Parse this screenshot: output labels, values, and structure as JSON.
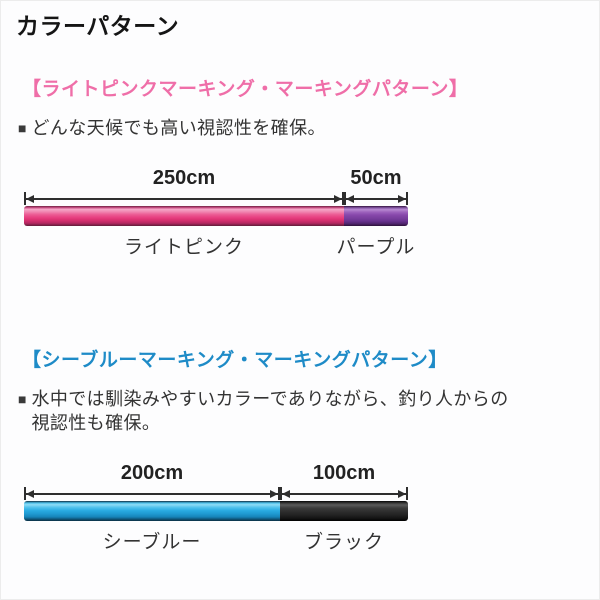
{
  "page": {
    "title": "カラーパターン",
    "bullet_marker": "■"
  },
  "colors": {
    "pink_heading": "#ef6ea8",
    "blue_heading": "#1e8bc7",
    "light_pink_line": "#e8417e",
    "purple_line": "#7a3f9e",
    "sea_blue_line": "#29abe2",
    "black_line": "#2e2e2e",
    "arrow": "#2e2e2e"
  },
  "sections": [
    {
      "heading": "【ライトピンクマーキング・マーキングパターン】",
      "heading_color": "#ef6ea8",
      "bullet": {
        "marker": "■",
        "text": "どんな天候でも高い視認性を確保。"
      },
      "chart": {
        "type": "bar",
        "unit": "cm",
        "total_cm": 300,
        "segments": [
          {
            "label": "ライトピンク",
            "length_label": "250cm",
            "value_cm": 250,
            "color_name": "light-pink",
            "color": "#e8417e"
          },
          {
            "label": "パープル",
            "length_label": "50cm",
            "value_cm": 50,
            "color_name": "purple",
            "color": "#7a3f9e"
          }
        ]
      }
    },
    {
      "heading": "【シーブルーマーキング・マーキングパターン】",
      "heading_color": "#1e8bc7",
      "bullet": {
        "marker": "■",
        "text": "水中では馴染みやすいカラーでありながら、釣り人からの視認性も確保。"
      },
      "chart": {
        "type": "bar",
        "unit": "cm",
        "total_cm": 300,
        "segments": [
          {
            "label": "シーブルー",
            "length_label": "200cm",
            "value_cm": 200,
            "color_name": "sea-blue",
            "color": "#29abe2"
          },
          {
            "label": "ブラック",
            "length_label": "100cm",
            "value_cm": 100,
            "color_name": "black",
            "color": "#2e2e2e"
          }
        ]
      }
    }
  ]
}
